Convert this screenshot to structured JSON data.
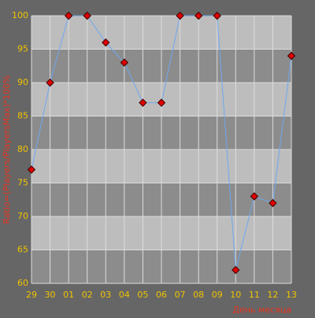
{
  "chart_data": {
    "type": "line",
    "y_label": "Ratio=(Players/PlayersMax)*100%",
    "x_label": "День месяца",
    "categories": [
      "29",
      "30",
      "01",
      "02",
      "03",
      "04",
      "05",
      "06",
      "07",
      "08",
      "09",
      "10",
      "11",
      "12",
      "13"
    ],
    "series": [
      {
        "color": "#6fa8f0",
        "values": [
          77,
          90,
          100,
          100,
          96,
          93,
          87,
          87,
          100,
          100,
          100,
          62,
          73,
          72,
          94
        ]
      }
    ],
    "ylim": [
      60,
      100
    ],
    "yticks": [
      60,
      65,
      70,
      75,
      80,
      85,
      90,
      95,
      100
    ],
    "grid": true
  }
}
